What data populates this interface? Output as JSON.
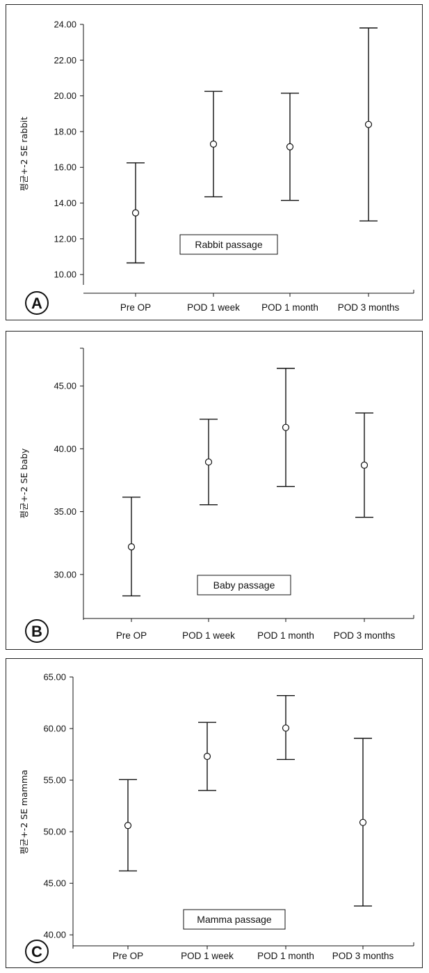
{
  "chart_data": [
    {
      "type": "scatter",
      "panel_label": "A",
      "title": "",
      "ylabel": "평균+-2 SE rabbit",
      "annotation": "Rabbit passage",
      "categories": [
        "Pre OP",
        "POD 1 week",
        "POD 1 month",
        "POD 3 months"
      ],
      "ylim": [
        9.5,
        24
      ],
      "yticks": [
        "10.00",
        "12.00",
        "14.00",
        "16.00",
        "18.00",
        "20.00",
        "22.00",
        "24.00"
      ],
      "mean": [
        13.45,
        17.3,
        17.15,
        18.4
      ],
      "lower": [
        10.65,
        14.35,
        14.15,
        13.0
      ],
      "upper": [
        16.25,
        20.25,
        20.15,
        23.8
      ]
    },
    {
      "type": "scatter",
      "panel_label": "B",
      "title": "",
      "ylabel": "평균+-2 SE baby",
      "annotation": "Baby passage",
      "categories": [
        "Pre OP",
        "POD 1 week",
        "POD 1 month",
        "POD 3 months"
      ],
      "ylim": [
        26.5,
        48
      ],
      "yticks": [
        "30.00",
        "35.00",
        "40.00",
        "45.00"
      ],
      "mean": [
        32.2,
        38.95,
        41.7,
        38.7
      ],
      "lower": [
        28.3,
        35.55,
        37.0,
        34.55
      ],
      "upper": [
        36.15,
        42.35,
        46.4,
        42.85
      ]
    },
    {
      "type": "scatter",
      "panel_label": "C",
      "title": "",
      "ylabel": "평균+-2 SE mamma",
      "annotation": "Mamma passage",
      "categories": [
        "Pre OP",
        "POD 1 week",
        "POD 1 month",
        "POD 3 months"
      ],
      "ylim": [
        38.8,
        65
      ],
      "yticks": [
        "40.00",
        "45.00",
        "50.00",
        "55.00",
        "60.00",
        "65.00"
      ],
      "mean": [
        50.6,
        57.3,
        60.05,
        50.9
      ],
      "lower": [
        46.2,
        54.0,
        57.0,
        42.8
      ],
      "upper": [
        55.05,
        60.6,
        63.2,
        59.05
      ]
    }
  ]
}
